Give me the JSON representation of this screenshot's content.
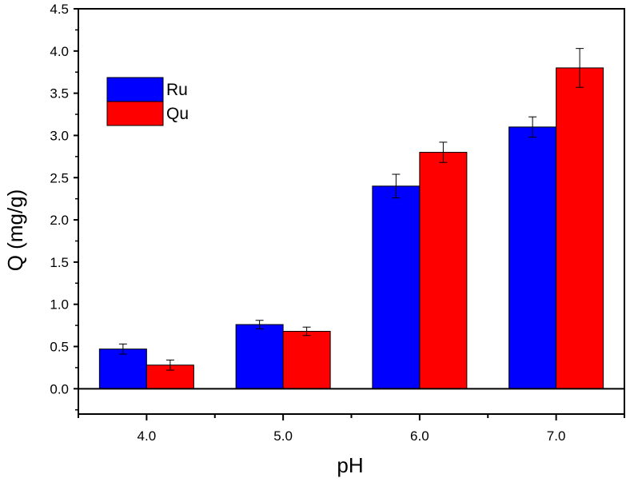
{
  "chart_data": {
    "type": "bar",
    "title": "",
    "xlabel": "pH",
    "ylabel": "Q (mg/g)",
    "categories": [
      "4.0",
      "5.0",
      "6.0",
      "7.0"
    ],
    "series": [
      {
        "name": "Ru",
        "color": "#0000ff",
        "values": [
          0.47,
          0.76,
          2.4,
          3.1
        ],
        "errors": [
          0.06,
          0.05,
          0.14,
          0.12
        ]
      },
      {
        "name": "Qu",
        "color": "#ff0000",
        "values": [
          0.28,
          0.68,
          2.8,
          3.8
        ],
        "errors": [
          0.06,
          0.05,
          0.12,
          0.23
        ]
      }
    ],
    "ylim": [
      -0.3,
      4.5
    ],
    "yticks": [
      "0.0",
      "0.5",
      "1.0",
      "1.5",
      "2.0",
      "2.5",
      "3.0",
      "3.5",
      "4.0",
      "4.5"
    ],
    "grid": false,
    "legend_position": "top-left",
    "zero_line": true
  }
}
